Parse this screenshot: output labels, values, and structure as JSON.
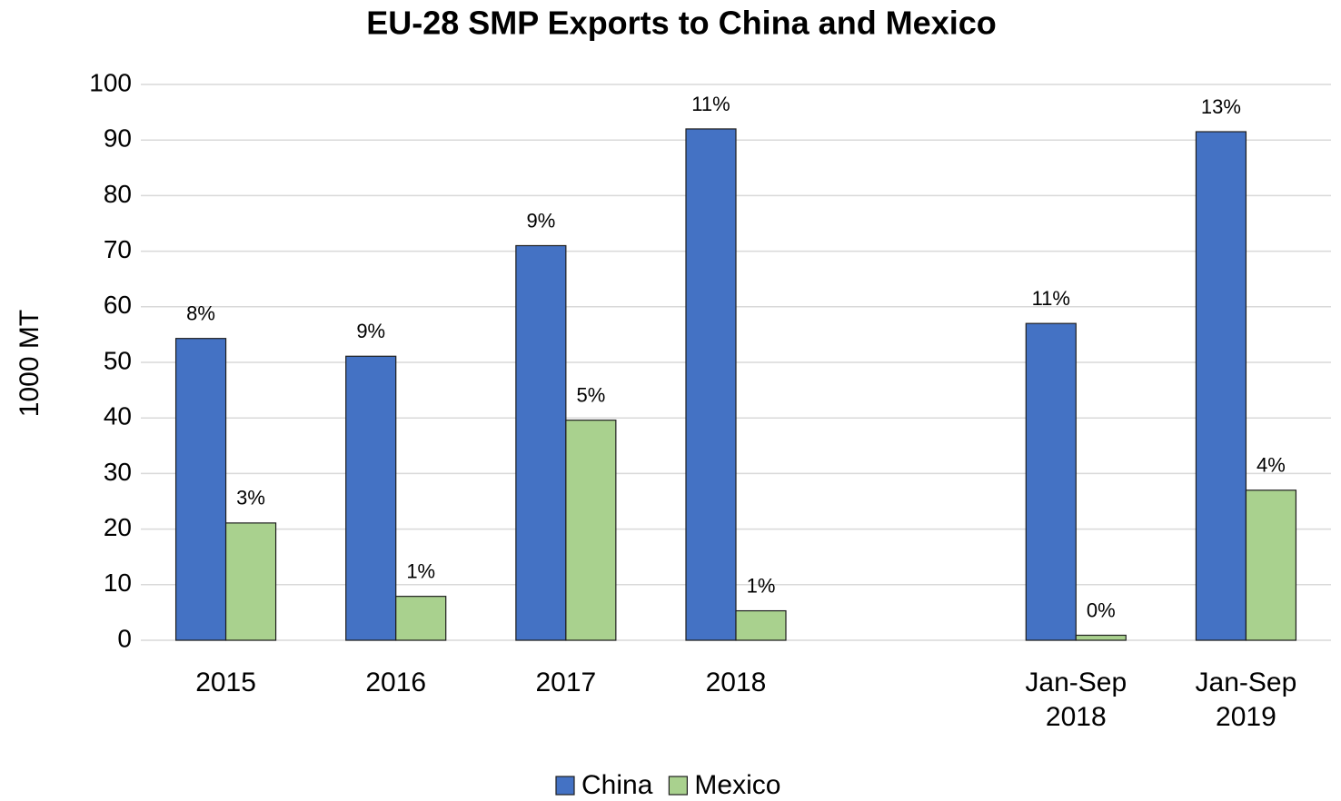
{
  "chart_data": {
    "type": "bar",
    "title": "EU-28 SMP Exports to China and Mexico",
    "y_label": "1000 MT",
    "categories": [
      "2015",
      "2016",
      "2017",
      "2018",
      null,
      "Jan-Sep 2018",
      "Jan-Sep 2019"
    ],
    "series": [
      {
        "name": "China",
        "color": "#4472c4",
        "values": [
          54.3,
          51.1,
          71,
          92,
          null,
          57,
          91.5
        ],
        "percent_labels": [
          "8%",
          "9%",
          "9%",
          "11%",
          null,
          "11%",
          "13%"
        ]
      },
      {
        "name": "Mexico",
        "color": "#a9d18e",
        "values": [
          21.1,
          7.9,
          39.6,
          5.3,
          null,
          0.9,
          27
        ],
        "percent_labels": [
          "3%",
          "1%",
          "5%",
          "1%",
          null,
          "0%",
          "4%"
        ]
      }
    ],
    "ylim": [
      0,
      100
    ],
    "yticks": [
      0,
      10,
      20,
      30,
      40,
      50,
      60,
      70,
      80,
      90,
      100
    ],
    "grid": true,
    "legend": "bottom"
  }
}
